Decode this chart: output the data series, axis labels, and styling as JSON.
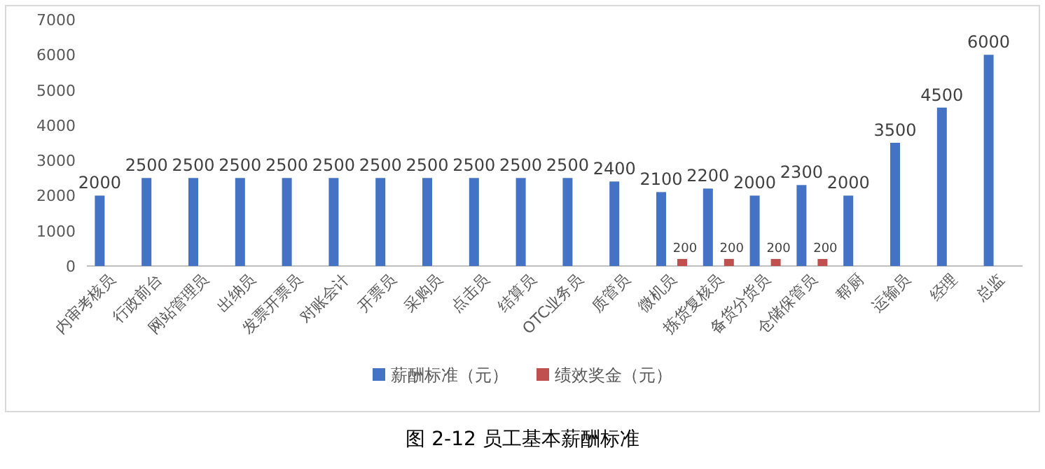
{
  "chart_data": {
    "type": "bar",
    "categories": [
      "内审考核员",
      "行政前台",
      "网站管理员",
      "出纳员",
      "发票开票员",
      "对账会计",
      "开票员",
      "采购员",
      "点击员",
      "结算员",
      "OTC业务员",
      "质管员",
      "微机员",
      "拣货复核员",
      "备货分货员",
      "仓储保管员",
      "帮厨",
      "运输员",
      "经理",
      "总监"
    ],
    "series": [
      {
        "name": "薪酬标准（元）",
        "color": "#4472c4",
        "values": [
          2000,
          2500,
          2500,
          2500,
          2500,
          2500,
          2500,
          2500,
          2500,
          2500,
          2500,
          2400,
          2100,
          2200,
          2000,
          2300,
          2000,
          3500,
          4500,
          6000
        ]
      },
      {
        "name": "绩效奖金（元）",
        "color": "#c0504d",
        "values": [
          null,
          null,
          null,
          null,
          null,
          null,
          null,
          null,
          null,
          null,
          null,
          null,
          200,
          200,
          200,
          200,
          null,
          null,
          null,
          null
        ]
      }
    ],
    "ylim": [
      0,
      7000
    ],
    "yticks": [
      0,
      1000,
      2000,
      3000,
      4000,
      5000,
      6000,
      7000
    ],
    "grid": false,
    "legend": "bottom",
    "data_labels": true,
    "annotations": [
      "图 2-12 员工基本薪酬标准"
    ]
  }
}
